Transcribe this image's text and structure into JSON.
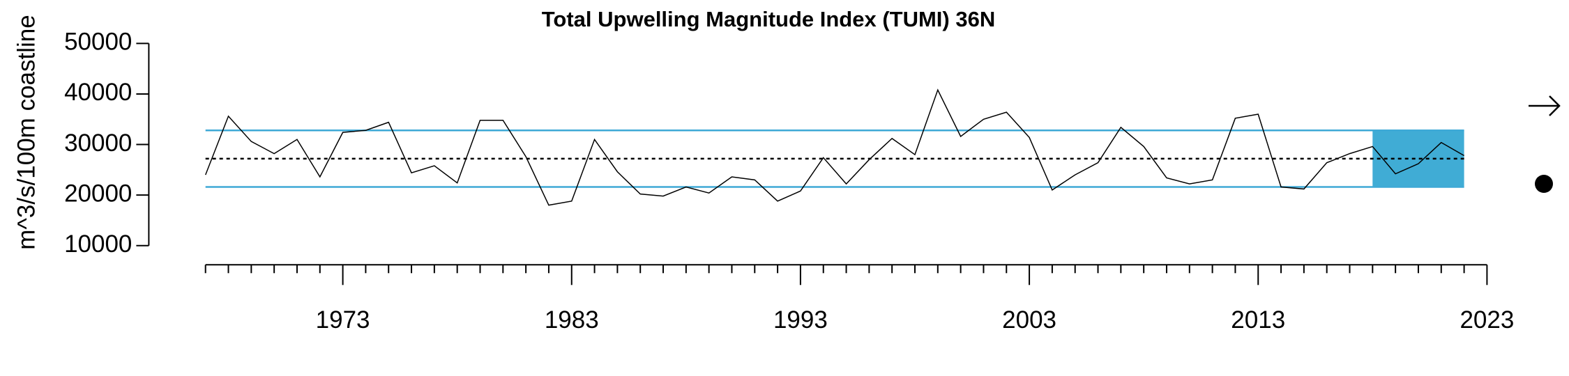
{
  "chart_data": {
    "type": "line",
    "title": "Total Upwelling Magnitude Index (TUMI) 36N",
    "y_label": "m^3/s/100m coastline",
    "x": [
      1967,
      1968,
      1969,
      1970,
      1971,
      1972,
      1973,
      1974,
      1975,
      1976,
      1977,
      1978,
      1979,
      1980,
      1981,
      1982,
      1983,
      1984,
      1985,
      1986,
      1987,
      1988,
      1989,
      1990,
      1991,
      1992,
      1993,
      1994,
      1995,
      1996,
      1997,
      1998,
      1999,
      2000,
      2001,
      2002,
      2003,
      2004,
      2005,
      2006,
      2007,
      2008,
      2009,
      2010,
      2011,
      2012,
      2013,
      2014,
      2015,
      2016,
      2017,
      2018,
      2019,
      2020,
      2021,
      2022
    ],
    "values": [
      24000,
      35600,
      30600,
      28200,
      31000,
      23600,
      32400,
      32800,
      34400,
      24400,
      25800,
      22400,
      34800,
      34800,
      27600,
      18000,
      18800,
      31000,
      24600,
      20200,
      19800,
      21600,
      20400,
      23600,
      23000,
      18800,
      20800,
      27400,
      22200,
      27000,
      31200,
      28000,
      40800,
      31600,
      35000,
      36400,
      31400,
      21000,
      24000,
      26400,
      33400,
      29600,
      23400,
      22200,
      23000,
      35200,
      36000,
      21600,
      21200,
      26400,
      28200,
      29600,
      24200,
      26200,
      30400,
      27800
    ],
    "color": "#000000",
    "mean": 27200,
    "upper": 32800,
    "lower": 21600,
    "band_color": "#3ea9d6",
    "shade_x": [
      2018,
      2022
    ],
    "shade_color": "#40acd5",
    "xlim": [
      1967,
      2023
    ],
    "xticks": [
      1973,
      1983,
      1993,
      2003,
      2013,
      2023
    ],
    "xminor_ticks": [
      1967,
      1968,
      1969,
      1970,
      1971,
      1972,
      1974,
      1975,
      1976,
      1977,
      1978,
      1979,
      1980,
      1981,
      1982,
      1984,
      1985,
      1986,
      1987,
      1988,
      1989,
      1990,
      1991,
      1992,
      1994,
      1995,
      1996,
      1997,
      1998,
      1999,
      2000,
      2001,
      2002,
      2004,
      2005,
      2006,
      2007,
      2008,
      2009,
      2010,
      2011,
      2012,
      2014,
      2015,
      2016,
      2017,
      2018,
      2019,
      2020,
      2021,
      2022
    ],
    "ylim": [
      10000,
      50000
    ],
    "yticks": [
      10000,
      20000,
      30000,
      40000,
      50000
    ]
  }
}
